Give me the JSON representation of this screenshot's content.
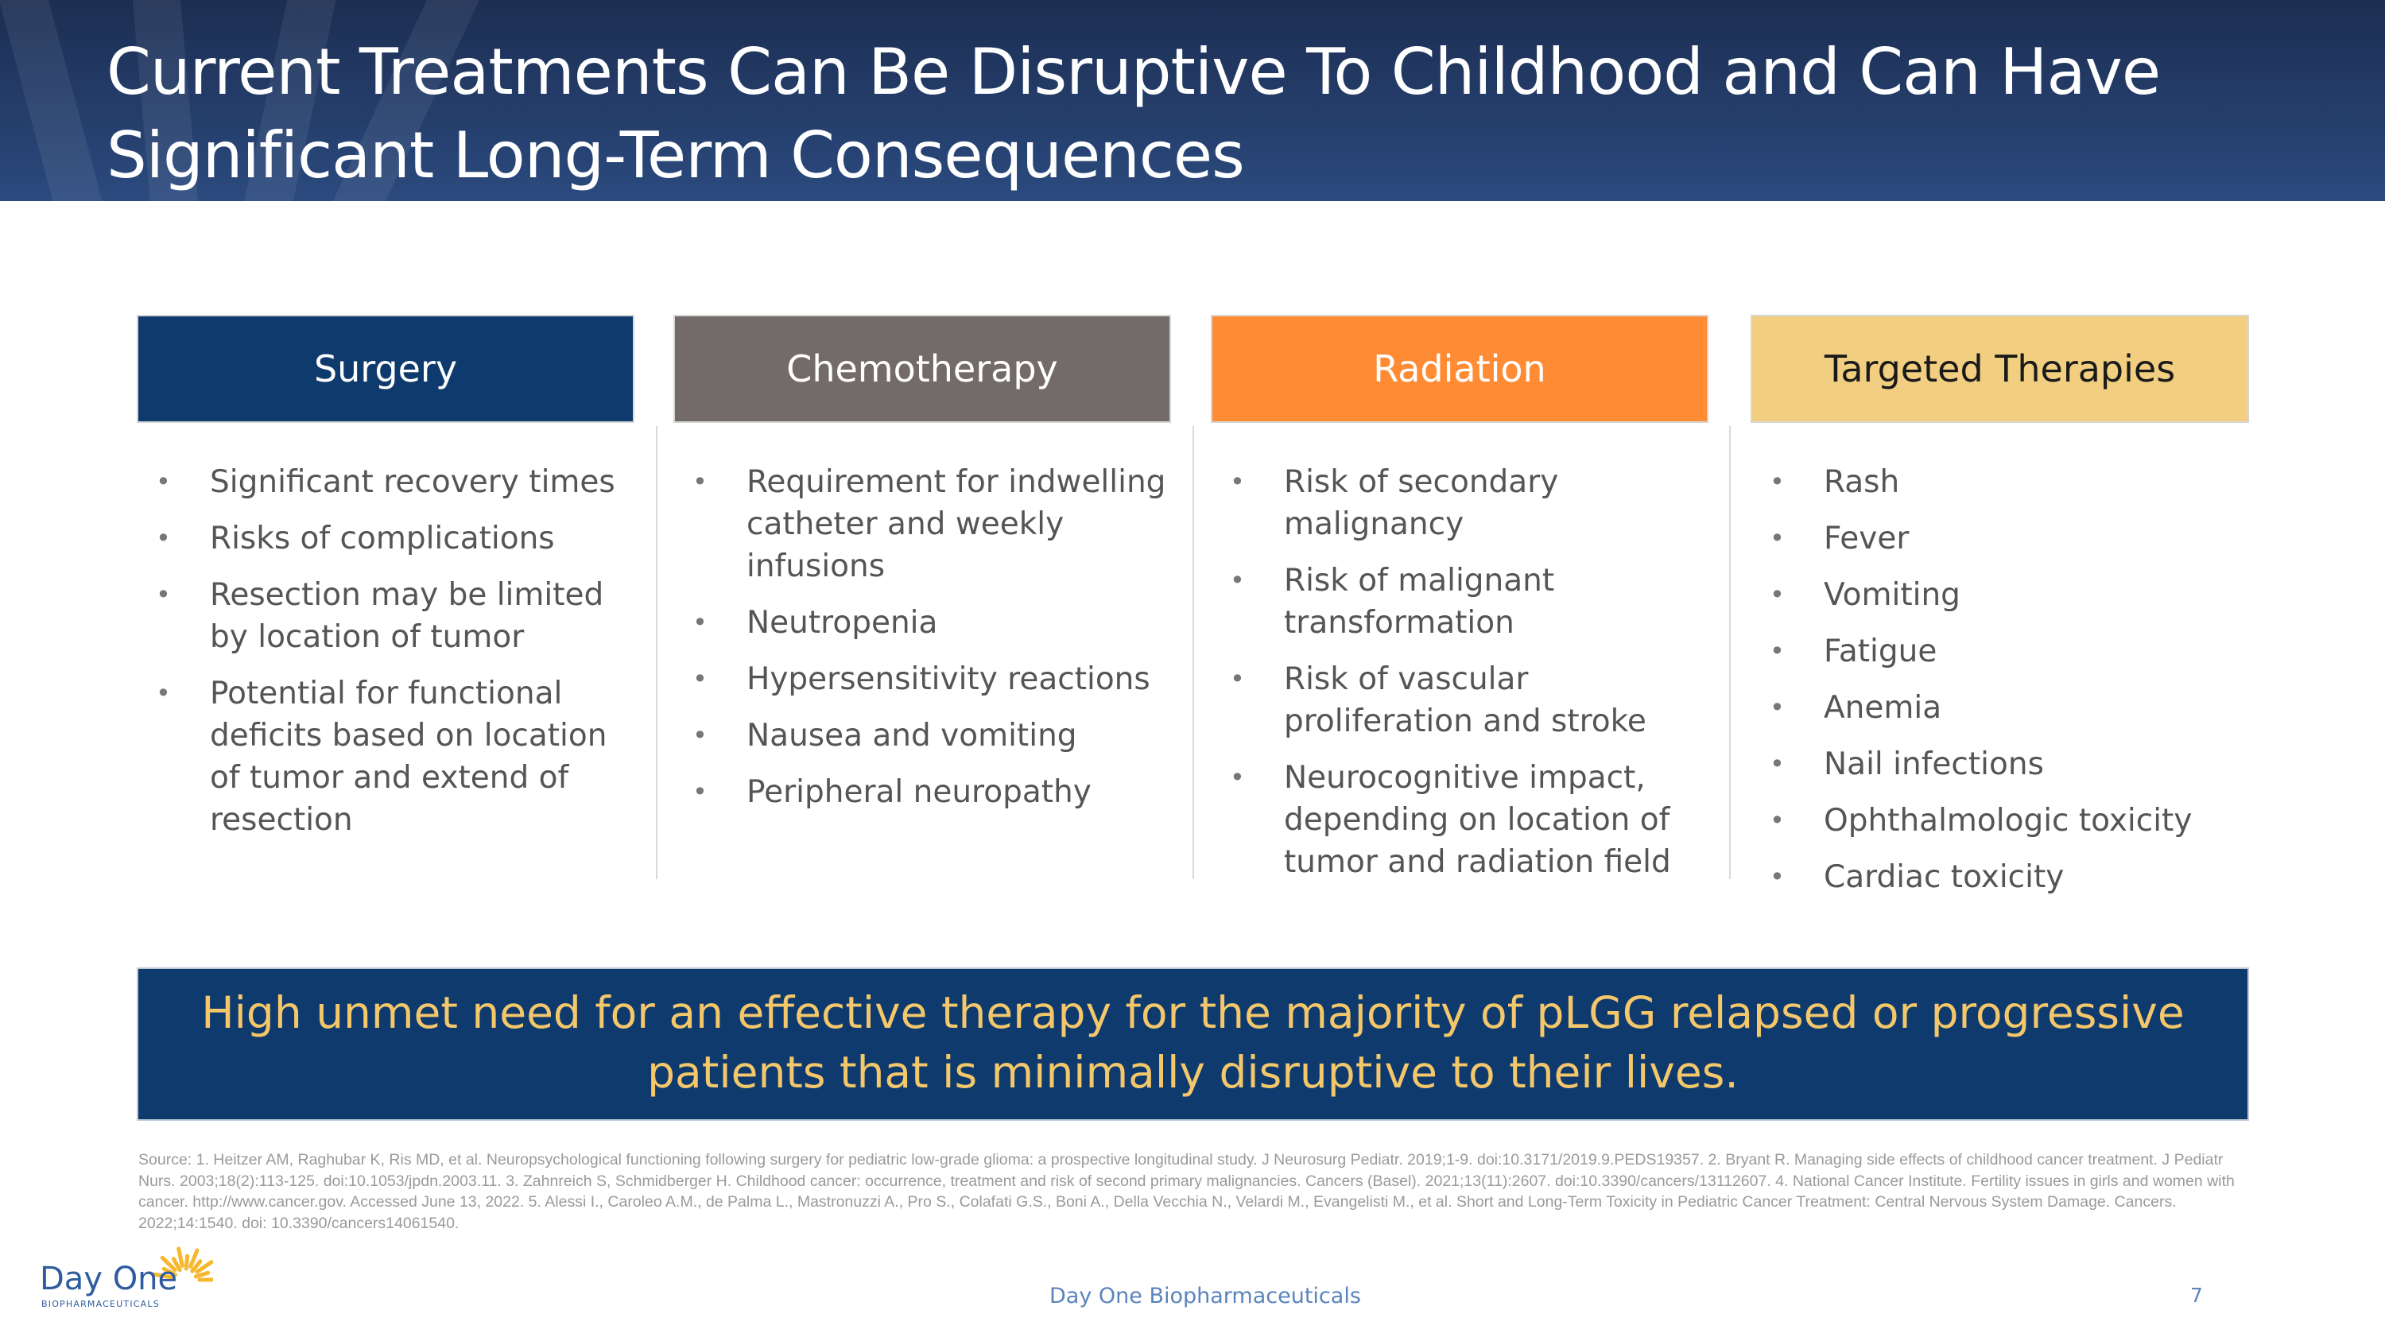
{
  "title": {
    "line1": "Current Treatments Can Be Disruptive To Childhood and Can Have",
    "line2": "Significant Long-Term Consequences"
  },
  "columns": [
    {
      "heading": "Surgery",
      "color": "#0f3a6e",
      "text_color": "#ffffff",
      "items": [
        "Significant recovery times",
        "Risks of complications",
        "Resection may be limited by location of tumor",
        "Potential for functional deficits based on location of tumor and extend of resection"
      ]
    },
    {
      "heading": "Chemotherapy",
      "color": "#736b69",
      "text_color": "#ffffff",
      "items": [
        "Requirement for indwelling catheter and weekly infusions",
        "Neutropenia",
        "Hypersensitivity reactions",
        "Nausea and vomiting",
        "Peripheral neuropathy"
      ]
    },
    {
      "heading": "Radiation",
      "color": "#ff8c35",
      "text_color": "#ffffff",
      "items": [
        "Risk of secondary malignancy",
        "Risk of malignant transformation",
        "Risk of vascular proliferation and stroke",
        "Neurocognitive impact, depending on location of tumor and radiation field"
      ]
    },
    {
      "heading": "Targeted Therapies",
      "color": "#f2cf80",
      "text_color": "#1a1a1a",
      "items": [
        "Rash",
        "Fever",
        "Vomiting",
        "Fatigue",
        "Anemia",
        "Nail infections",
        "Ophthalmologic toxicity",
        "Cardiac toxicity"
      ]
    }
  ],
  "unmet_need": "High unmet need for an effective therapy for the majority of pLGG relapsed or progressive patients that is minimally disruptive to their lives.",
  "source": "Source: 1. Heitzer AM, Raghubar K, Ris MD, et al. Neuropsychological functioning following surgery for pediatric low-grade glioma: a prospective longitudinal study. J Neurosurg Pediatr. 2019;1-9. doi:10.3171/2019.9.PEDS19357. 2. Bryant R. Managing side effects of childhood cancer treatment. J Pediatr Nurs. 2003;18(2):113-125. doi:10.1053/jpdn.2003.11. 3. Zahnreich S, Schmidberger H. Childhood cancer: occurrence, treatment and risk of second primary malignancies. Cancers (Basel). 2021;13(11):2607. doi:10.3390/cancers/13112607. 4. National Cancer Institute. Fertility issues in girls and women with cancer. http://www.cancer.gov. Accessed June 13, 2022. 5. Alessi I., Caroleo A.M., de Palma L., Mastronuzzi A., Pro S., Colafati G.S., Boni A., Della Vecchia N., Velardi M., Evangelisti M., et al. Short and Long-Term Toxicity in Pediatric Cancer Treatment: Central Nervous System Damage. Cancers. 2022;14:1540. doi: 10.3390/cancers14061540.",
  "footer": {
    "company": "Day One Biopharmaceuticals",
    "page": "7"
  },
  "logo": {
    "name": "Day One",
    "sub": "BIOPHARMACEUTICALS"
  }
}
